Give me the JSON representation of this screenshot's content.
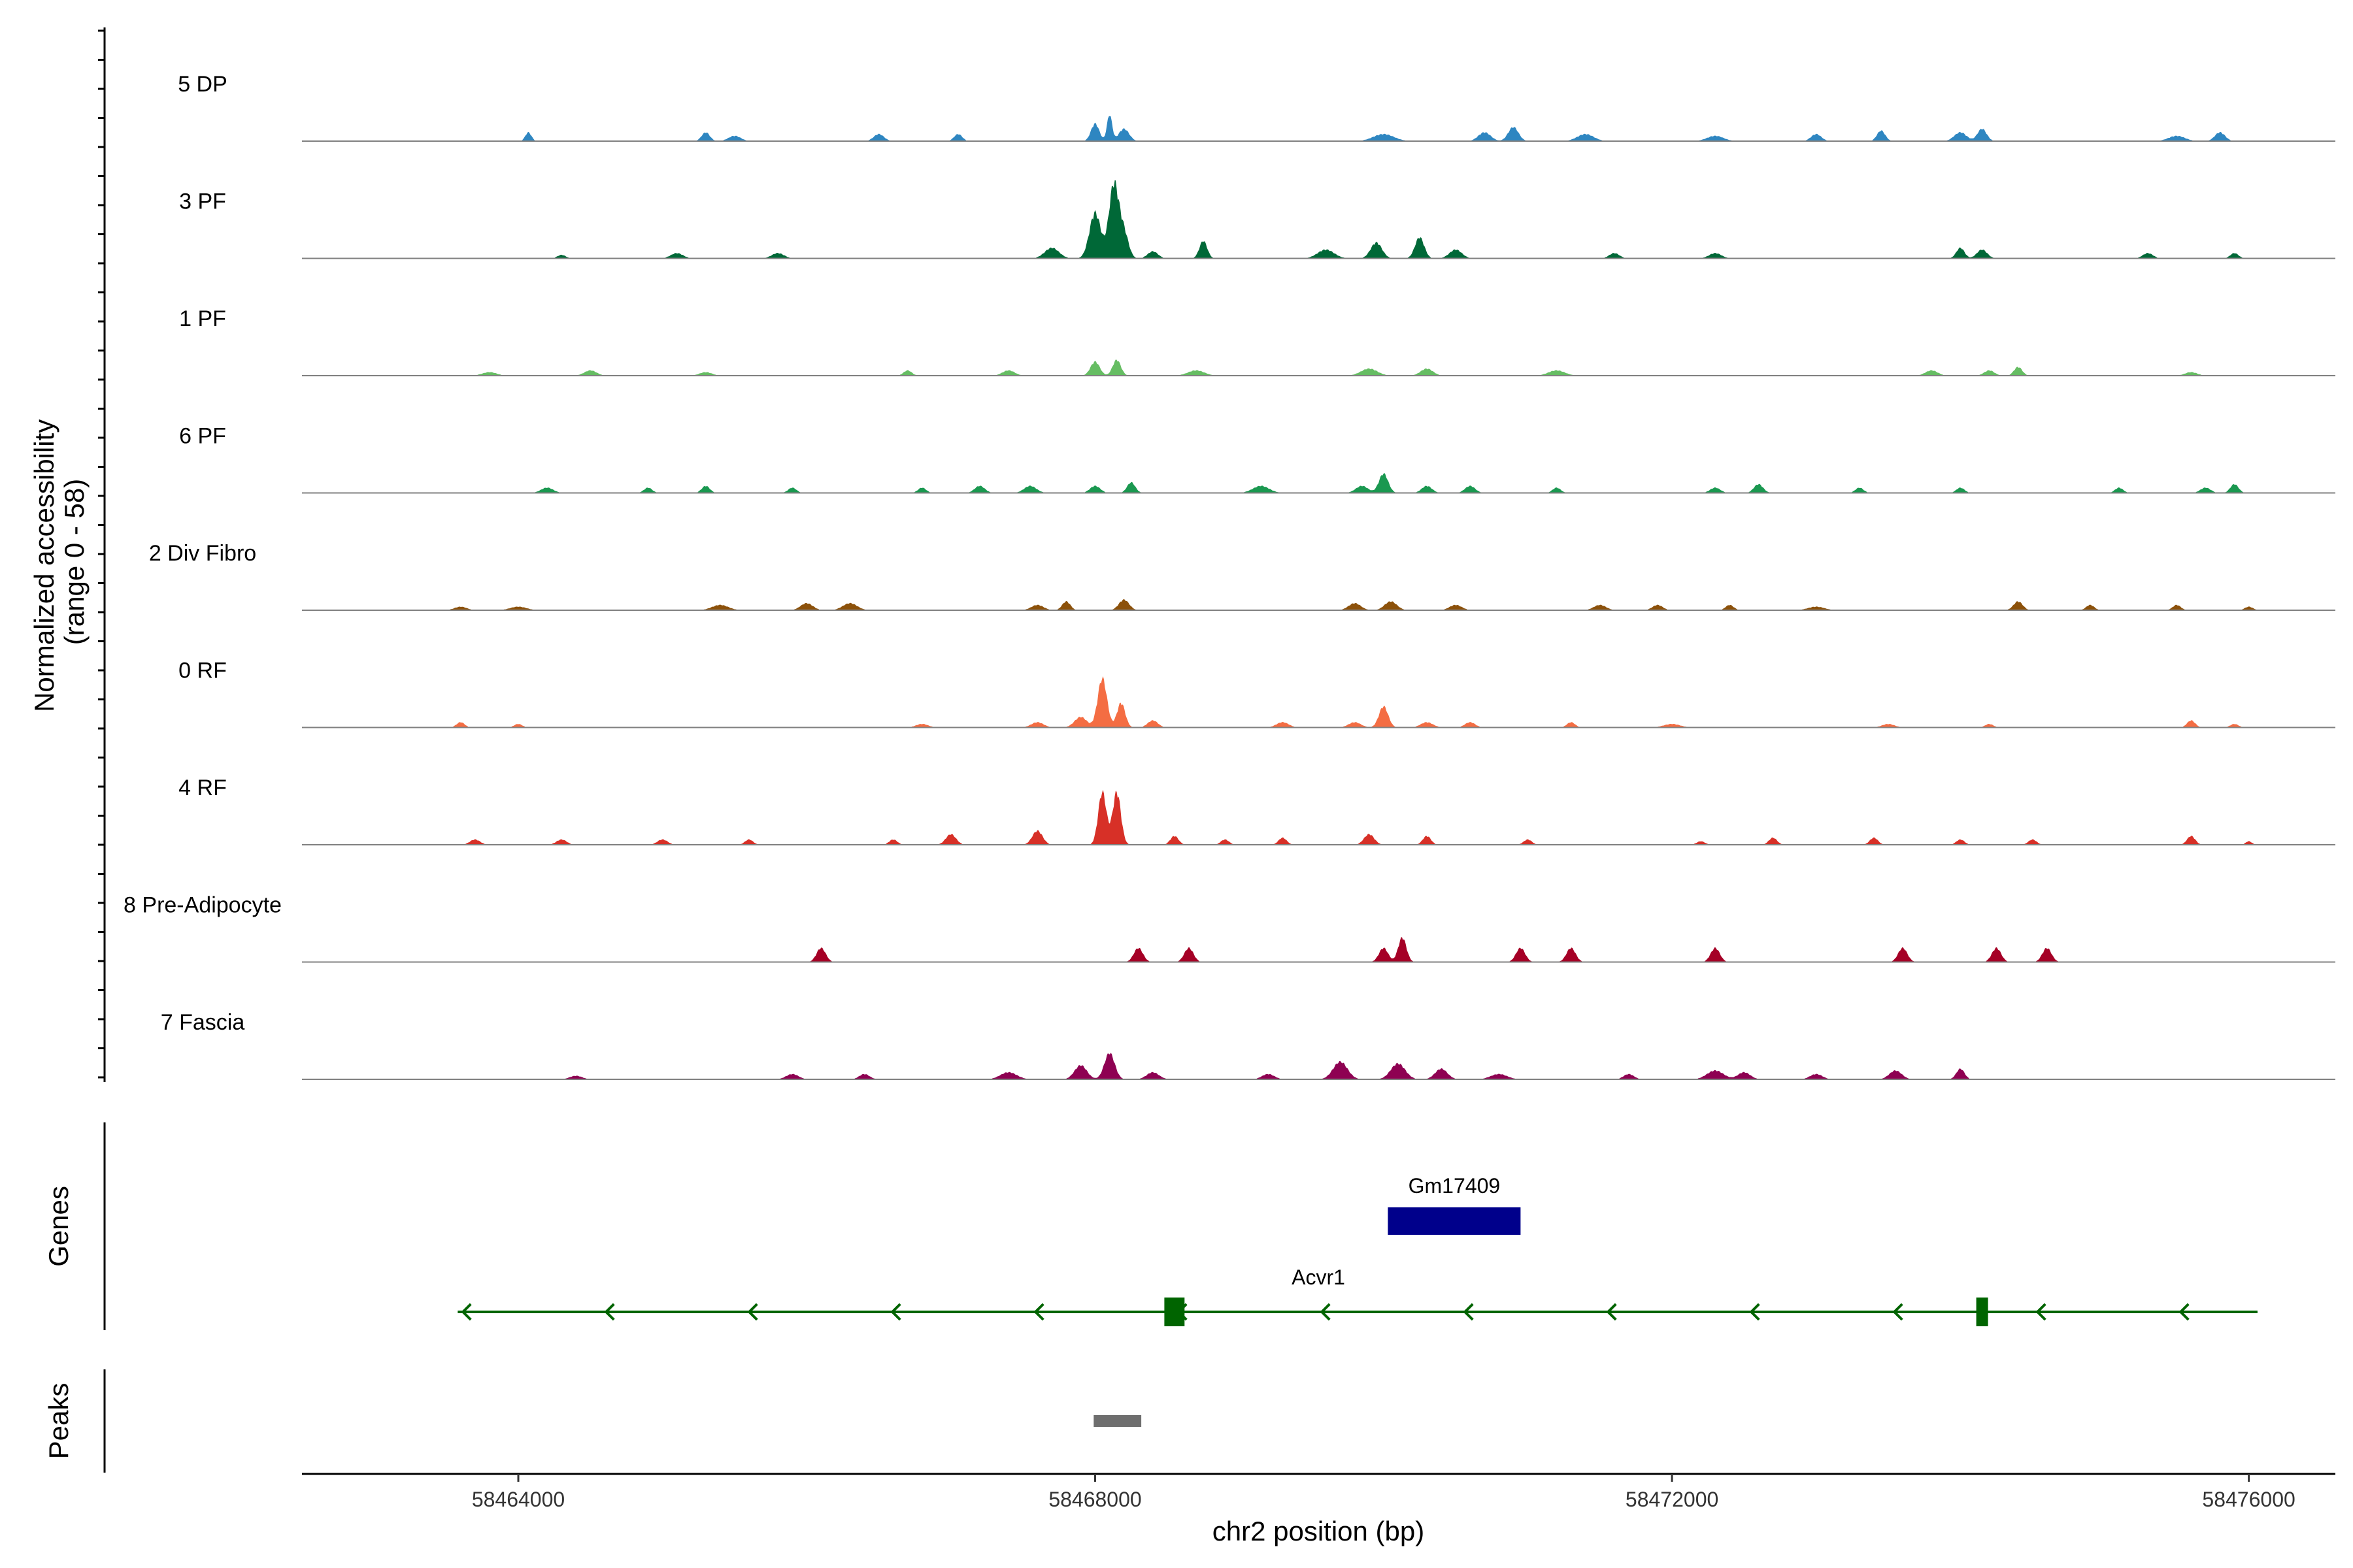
{
  "chart_data": {
    "type": "area",
    "title": "",
    "ylabel_line1": "Normalized accessibility",
    "ylabel_line2": "(range 0 - 58)",
    "yrange": [
      0,
      58
    ],
    "xlabel": "chr2 position (bp)",
    "xlim": [
      58462500,
      58476600
    ],
    "xticks": [
      "58464000",
      "58468000",
      "58472000",
      "58476000"
    ],
    "xtick_values": [
      58464000,
      58468000,
      58472000,
      58476000
    ],
    "tracks": [
      {
        "name": "5 DP",
        "color": "#2e86c1",
        "peaks": [
          [
            58464070,
            5,
            30
          ],
          [
            58465300,
            5,
            40
          ],
          [
            58465500,
            3,
            60
          ],
          [
            58466500,
            4,
            50
          ],
          [
            58467050,
            4,
            40
          ],
          [
            58468000,
            10,
            40
          ],
          [
            58468100,
            15,
            25
          ],
          [
            58468200,
            7,
            50
          ],
          [
            58470000,
            4,
            100
          ],
          [
            58470700,
            5,
            60
          ],
          [
            58470900,
            8,
            50
          ],
          [
            58471400,
            4,
            80
          ],
          [
            58472300,
            3,
            80
          ],
          [
            58473000,
            4,
            50
          ],
          [
            58473450,
            6,
            40
          ],
          [
            58474000,
            5,
            60
          ],
          [
            58474150,
            7,
            45
          ],
          [
            58475500,
            3,
            80
          ],
          [
            58475800,
            5,
            50
          ]
        ]
      },
      {
        "name": "3 PF",
        "color": "#006837",
        "peaks": [
          [
            58464300,
            2,
            40
          ],
          [
            58465100,
            3,
            60
          ],
          [
            58465800,
            3,
            60
          ],
          [
            58467700,
            6,
            70
          ],
          [
            58468000,
            26,
            55
          ],
          [
            58468130,
            42,
            48
          ],
          [
            58468200,
            14,
            45
          ],
          [
            58468400,
            4,
            50
          ],
          [
            58468750,
            10,
            38
          ],
          [
            58469600,
            5,
            80
          ],
          [
            58469950,
            9,
            55
          ],
          [
            58470250,
            12,
            45
          ],
          [
            58470500,
            5,
            60
          ],
          [
            58471600,
            3,
            50
          ],
          [
            58472300,
            3,
            60
          ],
          [
            58474000,
            6,
            40
          ],
          [
            58474150,
            5,
            50
          ],
          [
            58475300,
            3,
            50
          ],
          [
            58475900,
            3,
            40
          ]
        ]
      },
      {
        "name": "1 PF",
        "color": "#66bd63",
        "peaks": [
          [
            58463800,
            2,
            70
          ],
          [
            58464500,
            3,
            60
          ],
          [
            58465300,
            2,
            60
          ],
          [
            58466700,
            3,
            40
          ],
          [
            58467400,
            3,
            60
          ],
          [
            58468000,
            8,
            45
          ],
          [
            58468150,
            9,
            40
          ],
          [
            58468700,
            3,
            80
          ],
          [
            58469900,
            4,
            80
          ],
          [
            58470300,
            4,
            60
          ],
          [
            58471200,
            3,
            80
          ],
          [
            58473800,
            3,
            60
          ],
          [
            58474200,
            3,
            50
          ],
          [
            58474400,
            5,
            40
          ],
          [
            58475600,
            2,
            60
          ]
        ]
      },
      {
        "name": "6 PF",
        "color": "#1a9850",
        "peaks": [
          [
            58464200,
            3,
            60
          ],
          [
            58464900,
            3,
            40
          ],
          [
            58465300,
            4,
            40
          ],
          [
            58465900,
            3,
            40
          ],
          [
            58466800,
            3,
            40
          ],
          [
            58467200,
            4,
            50
          ],
          [
            58467550,
            4,
            60
          ],
          [
            58468000,
            4,
            50
          ],
          [
            58468250,
            6,
            40
          ],
          [
            58469150,
            4,
            80
          ],
          [
            58469850,
            4,
            60
          ],
          [
            58470000,
            11,
            45
          ],
          [
            58470300,
            4,
            50
          ],
          [
            58470600,
            4,
            50
          ],
          [
            58471200,
            3,
            40
          ],
          [
            58472300,
            3,
            50
          ],
          [
            58472600,
            5,
            45
          ],
          [
            58473300,
            3,
            40
          ],
          [
            58474000,
            3,
            40
          ],
          [
            58475100,
            3,
            40
          ],
          [
            58475700,
            3,
            50
          ],
          [
            58475900,
            5,
            40
          ]
        ]
      },
      {
        "name": "2 Div Fibro",
        "color": "#8c510a",
        "peaks": [
          [
            58463600,
            2,
            60
          ],
          [
            58464000,
            2,
            80
          ],
          [
            58465400,
            3,
            80
          ],
          [
            58466000,
            4,
            60
          ],
          [
            58466300,
            4,
            70
          ],
          [
            58467600,
            3,
            60
          ],
          [
            58467800,
            5,
            40
          ],
          [
            58468200,
            6,
            50
          ],
          [
            58469800,
            4,
            60
          ],
          [
            58470050,
            5,
            60
          ],
          [
            58470500,
            3,
            60
          ],
          [
            58471500,
            3,
            60
          ],
          [
            58471900,
            3,
            50
          ],
          [
            58472400,
            3,
            40
          ],
          [
            58473000,
            2,
            80
          ],
          [
            58474400,
            5,
            45
          ],
          [
            58474900,
            3,
            40
          ],
          [
            58475500,
            3,
            40
          ],
          [
            58476000,
            2,
            40
          ]
        ]
      },
      {
        "name": "0 RF",
        "color": "#f46d43",
        "peaks": [
          [
            58463600,
            3,
            40
          ],
          [
            58464000,
            2,
            40
          ],
          [
            58466800,
            2,
            60
          ],
          [
            58467600,
            3,
            60
          ],
          [
            58467900,
            6,
            60
          ],
          [
            58468050,
            28,
            45
          ],
          [
            58468180,
            14,
            40
          ],
          [
            58468400,
            4,
            50
          ],
          [
            58469300,
            3,
            60
          ],
          [
            58469800,
            3,
            60
          ],
          [
            58470000,
            12,
            45
          ],
          [
            58470300,
            3,
            60
          ],
          [
            58470600,
            3,
            50
          ],
          [
            58471300,
            3,
            40
          ],
          [
            58472000,
            2,
            80
          ],
          [
            58473500,
            2,
            60
          ],
          [
            58474200,
            2,
            40
          ],
          [
            58475600,
            4,
            40
          ],
          [
            58475900,
            2,
            40
          ]
        ]
      },
      {
        "name": "4 RF",
        "color": "#d73027",
        "peaks": [
          [
            58463700,
            3,
            50
          ],
          [
            58464300,
            3,
            50
          ],
          [
            58465000,
            3,
            50
          ],
          [
            58465600,
            3,
            40
          ],
          [
            58466600,
            3,
            40
          ],
          [
            58467000,
            6,
            50
          ],
          [
            58467600,
            8,
            50
          ],
          [
            58468050,
            30,
            40
          ],
          [
            58468150,
            30,
            40
          ],
          [
            58468550,
            5,
            40
          ],
          [
            58468900,
            3,
            40
          ],
          [
            58469300,
            4,
            40
          ],
          [
            58469900,
            6,
            50
          ],
          [
            58470300,
            5,
            40
          ],
          [
            58471000,
            3,
            40
          ],
          [
            58472200,
            2,
            40
          ],
          [
            58472700,
            4,
            40
          ],
          [
            58473400,
            4,
            40
          ],
          [
            58474000,
            3,
            40
          ],
          [
            58474500,
            3,
            40
          ],
          [
            58475600,
            5,
            40
          ],
          [
            58476000,
            2,
            30
          ]
        ]
      },
      {
        "name": "8 Pre-Adipocyte",
        "color": "#a50026",
        "peaks": [
          [
            58466100,
            8,
            45
          ],
          [
            58468300,
            8,
            45
          ],
          [
            58468650,
            8,
            45
          ],
          [
            58470000,
            8,
            45
          ],
          [
            58470130,
            14,
            40
          ],
          [
            58470950,
            8,
            45
          ],
          [
            58471300,
            8,
            45
          ],
          [
            58472300,
            8,
            45
          ],
          [
            58473600,
            8,
            45
          ],
          [
            58474250,
            8,
            45
          ],
          [
            58474600,
            8,
            45
          ]
        ]
      },
      {
        "name": "7 Fascia",
        "color": "#8e0152",
        "peaks": [
          [
            58464400,
            2,
            60
          ],
          [
            58465900,
            3,
            60
          ],
          [
            58466400,
            3,
            50
          ],
          [
            58467400,
            4,
            80
          ],
          [
            58467900,
            8,
            60
          ],
          [
            58468100,
            15,
            50
          ],
          [
            58468400,
            4,
            60
          ],
          [
            58469200,
            3,
            60
          ],
          [
            58469700,
            10,
            70
          ],
          [
            58470100,
            9,
            70
          ],
          [
            58470400,
            6,
            60
          ],
          [
            58470800,
            3,
            80
          ],
          [
            58471700,
            3,
            50
          ],
          [
            58472300,
            5,
            80
          ],
          [
            58472500,
            4,
            60
          ],
          [
            58473000,
            3,
            60
          ],
          [
            58473550,
            5,
            60
          ],
          [
            58474000,
            6,
            40
          ]
        ]
      }
    ],
    "genes": [
      {
        "name": "Gm17409",
        "start": 58470030,
        "end": 58470950,
        "strand": "+",
        "color": "#00008b"
      },
      {
        "name": "Acvr1",
        "start": 58463580,
        "end": 58476060,
        "strand": "-",
        "color": "#006400",
        "exons": [
          [
            58468480,
            58468620
          ],
          [
            58474110,
            58474190
          ]
        ]
      }
    ],
    "peaks_track": {
      "title": "Peaks",
      "regions": [
        [
          58467990,
          58468320
        ]
      ],
      "color": "#6e6e6e"
    },
    "genes_track_title": "Genes"
  }
}
